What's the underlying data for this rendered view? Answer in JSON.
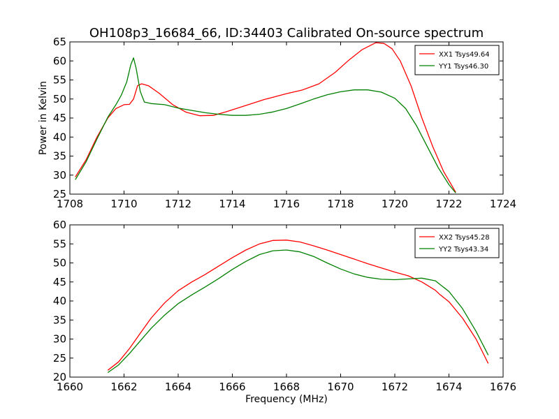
{
  "title": "OH108p3_16684_66, ID:34403 Calibrated On-source spectrum",
  "chart_data": [
    {
      "type": "line",
      "title": "OH108p3_16684_66, ID:34403 Calibrated On-source spectrum",
      "xlabel": "",
      "ylabel": "Power in Kelvin",
      "xlim": [
        1708,
        1724
      ],
      "ylim": [
        25,
        65
      ],
      "xticks": [
        1708,
        1710,
        1712,
        1714,
        1716,
        1718,
        1720,
        1722,
        1724
      ],
      "yticks": [
        25,
        30,
        35,
        40,
        45,
        50,
        55,
        60,
        65
      ],
      "grid": false,
      "legend_position": "top-right",
      "series": [
        {
          "name": "XX1 Tsys49.64",
          "color": "#ff0000",
          "points": [
            [
              1708.2,
              29.5
            ],
            [
              1708.6,
              34
            ],
            [
              1709.0,
              40
            ],
            [
              1709.4,
              45
            ],
            [
              1709.7,
              47.5
            ],
            [
              1710.0,
              48.5
            ],
            [
              1710.2,
              48.6
            ],
            [
              1710.35,
              50
            ],
            [
              1710.5,
              53.5
            ],
            [
              1710.65,
              54.0
            ],
            [
              1710.9,
              53.5
            ],
            [
              1711.3,
              51.5
            ],
            [
              1711.8,
              48.5
            ],
            [
              1712.3,
              46.5
            ],
            [
              1712.8,
              45.6
            ],
            [
              1713.3,
              45.7
            ],
            [
              1713.8,
              46.7
            ],
            [
              1714.5,
              48.3
            ],
            [
              1715.2,
              49.9
            ],
            [
              1716.0,
              51.4
            ],
            [
              1716.6,
              52.4
            ],
            [
              1717.2,
              54.0
            ],
            [
              1717.8,
              57.0
            ],
            [
              1718.3,
              60.2
            ],
            [
              1718.8,
              63.0
            ],
            [
              1719.3,
              64.8
            ],
            [
              1719.6,
              64.6
            ],
            [
              1719.9,
              63.2
            ],
            [
              1720.2,
              60.0
            ],
            [
              1720.6,
              53.5
            ],
            [
              1721.0,
              45.0
            ],
            [
              1721.4,
              37.5
            ],
            [
              1721.8,
              31.0
            ],
            [
              1722.25,
              25.5
            ]
          ]
        },
        {
          "name": "YY1 Tsys46.30",
          "color": "#008000",
          "points": [
            [
              1708.2,
              28.8
            ],
            [
              1708.6,
              33.5
            ],
            [
              1709.0,
              39.5
            ],
            [
              1709.4,
              45.2
            ],
            [
              1709.7,
              48.5
            ],
            [
              1709.9,
              51.0
            ],
            [
              1710.1,
              54.5
            ],
            [
              1710.25,
              59.0
            ],
            [
              1710.35,
              60.8
            ],
            [
              1710.45,
              58.0
            ],
            [
              1710.6,
              52.0
            ],
            [
              1710.75,
              49.2
            ],
            [
              1711.0,
              48.8
            ],
            [
              1711.5,
              48.5
            ],
            [
              1712.0,
              47.6
            ],
            [
              1712.5,
              47.0
            ],
            [
              1713.0,
              46.4
            ],
            [
              1713.5,
              46.0
            ],
            [
              1714.0,
              45.7
            ],
            [
              1714.5,
              45.7
            ],
            [
              1715.0,
              46.0
            ],
            [
              1715.5,
              46.6
            ],
            [
              1716.0,
              47.5
            ],
            [
              1716.5,
              48.7
            ],
            [
              1717.0,
              50.0
            ],
            [
              1717.5,
              51.1
            ],
            [
              1718.0,
              51.9
            ],
            [
              1718.5,
              52.4
            ],
            [
              1719.0,
              52.4
            ],
            [
              1719.5,
              51.8
            ],
            [
              1720.0,
              50.2
            ],
            [
              1720.4,
              47.5
            ],
            [
              1720.8,
              43.0
            ],
            [
              1721.2,
              37.5
            ],
            [
              1721.6,
              32.0
            ],
            [
              1722.0,
              27.5
            ],
            [
              1722.25,
              25.3
            ]
          ]
        }
      ]
    },
    {
      "type": "line",
      "title": "",
      "xlabel": "Frequency (MHz)",
      "ylabel": "",
      "xlim": [
        1660,
        1676
      ],
      "ylim": [
        20,
        60
      ],
      "xticks": [
        1660,
        1662,
        1664,
        1666,
        1668,
        1670,
        1672,
        1674,
        1676
      ],
      "yticks": [
        20,
        25,
        30,
        35,
        40,
        45,
        50,
        55,
        60
      ],
      "grid": false,
      "legend_position": "top-right",
      "series": [
        {
          "name": "XX2 Tsys45.28",
          "color": "#ff0000",
          "points": [
            [
              1661.4,
              21.8
            ],
            [
              1661.8,
              24.0
            ],
            [
              1662.2,
              27.5
            ],
            [
              1662.6,
              31.5
            ],
            [
              1663.0,
              35.5
            ],
            [
              1663.5,
              39.5
            ],
            [
              1664.0,
              42.7
            ],
            [
              1664.5,
              45.0
            ],
            [
              1665.0,
              47.0
            ],
            [
              1665.5,
              49.2
            ],
            [
              1666.0,
              51.4
            ],
            [
              1666.5,
              53.4
            ],
            [
              1667.0,
              55.0
            ],
            [
              1667.5,
              55.9
            ],
            [
              1668.0,
              56.0
            ],
            [
              1668.5,
              55.5
            ],
            [
              1669.0,
              54.5
            ],
            [
              1669.5,
              53.4
            ],
            [
              1670.0,
              52.2
            ],
            [
              1670.5,
              51.0
            ],
            [
              1671.0,
              49.8
            ],
            [
              1671.5,
              48.7
            ],
            [
              1672.0,
              47.6
            ],
            [
              1672.5,
              46.6
            ],
            [
              1673.0,
              45.0
            ],
            [
              1673.5,
              42.8
            ],
            [
              1673.65,
              41.8
            ],
            [
              1674.0,
              39.8
            ],
            [
              1674.5,
              35.5
            ],
            [
              1675.0,
              30.0
            ],
            [
              1675.45,
              23.6
            ]
          ]
        },
        {
          "name": "YY2 Tsys43.34",
          "color": "#008000",
          "points": [
            [
              1661.4,
              21.2
            ],
            [
              1661.8,
              23.2
            ],
            [
              1662.2,
              26.2
            ],
            [
              1662.6,
              29.5
            ],
            [
              1663.0,
              32.8
            ],
            [
              1663.5,
              36.3
            ],
            [
              1664.0,
              39.3
            ],
            [
              1664.5,
              41.6
            ],
            [
              1665.0,
              43.7
            ],
            [
              1665.5,
              45.9
            ],
            [
              1666.0,
              48.3
            ],
            [
              1666.5,
              50.4
            ],
            [
              1667.0,
              52.2
            ],
            [
              1667.5,
              53.2
            ],
            [
              1668.0,
              53.4
            ],
            [
              1668.5,
              52.9
            ],
            [
              1669.0,
              51.7
            ],
            [
              1669.5,
              50.0
            ],
            [
              1670.0,
              48.4
            ],
            [
              1670.5,
              47.1
            ],
            [
              1671.0,
              46.2
            ],
            [
              1671.5,
              45.7
            ],
            [
              1672.0,
              45.6
            ],
            [
              1672.5,
              45.8
            ],
            [
              1673.0,
              46.0
            ],
            [
              1673.5,
              45.3
            ],
            [
              1674.0,
              42.5
            ],
            [
              1674.5,
              38.0
            ],
            [
              1675.0,
              32.0
            ],
            [
              1675.45,
              25.8
            ]
          ]
        }
      ]
    }
  ]
}
